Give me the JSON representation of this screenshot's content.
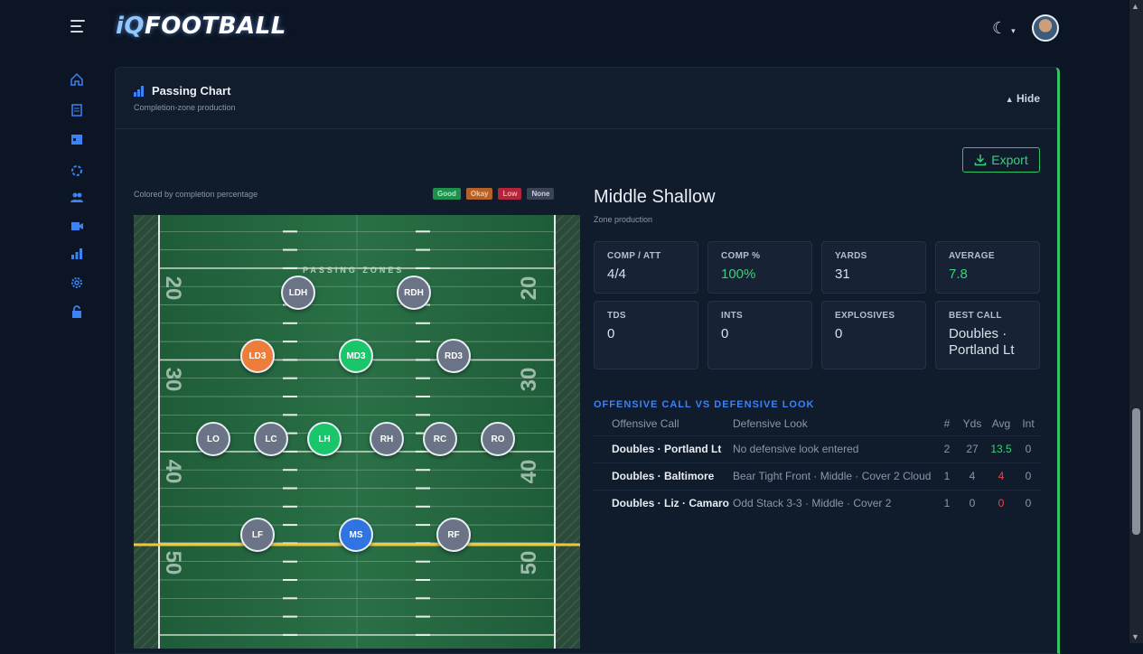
{
  "app": {
    "logo_prefix": "iQ",
    "logo_suffix": "FOOTBALL"
  },
  "nav": [
    "home-icon",
    "report-icon",
    "calendar-icon",
    "plays-icon",
    "users-icon",
    "film-icon",
    "analytics-icon",
    "settings-icon",
    "lock-icon"
  ],
  "panel": {
    "title": "Passing Chart",
    "subtitle": "Completion-zone production",
    "hide_label": "Hide",
    "export_label": "Export",
    "field_note": "Colored by completion percentage",
    "legend": [
      {
        "label": "Good",
        "color": "#1f8f4e"
      },
      {
        "label": "Okay",
        "color": "#b4622a"
      },
      {
        "label": "Low",
        "color": "#b3263a"
      },
      {
        "label": "None",
        "color": "#3a4456"
      }
    ],
    "field_label": "PASSING ZONES",
    "yard_numbers": [
      "20",
      "30",
      "40",
      "50"
    ]
  },
  "zones": [
    {
      "label": "LDH",
      "status": "none"
    },
    {
      "label": "RDH",
      "status": "none"
    },
    {
      "label": "LD3",
      "status": "okay"
    },
    {
      "label": "MD3",
      "status": "good"
    },
    {
      "label": "RD3",
      "status": "none"
    },
    {
      "label": "LO",
      "status": "none"
    },
    {
      "label": "LC",
      "status": "none"
    },
    {
      "label": "LH",
      "status": "good"
    },
    {
      "label": "RH",
      "status": "none"
    },
    {
      "label": "RC",
      "status": "none"
    },
    {
      "label": "RO",
      "status": "none"
    },
    {
      "label": "LF",
      "status": "none"
    },
    {
      "label": "MS",
      "status": "selected"
    },
    {
      "label": "RF",
      "status": "none"
    }
  ],
  "zone_colors": {
    "none": "#6b7486",
    "okay": "#ef7d3a",
    "good": "#19c76a",
    "selected": "#2f74e0"
  },
  "detail": {
    "title": "Middle Shallow",
    "subtitle": "Zone production",
    "stats": [
      {
        "label": "COMP / ATT",
        "value": "4/4"
      },
      {
        "label": "COMP %",
        "value": "100%",
        "highlight": true
      },
      {
        "label": "YARDS",
        "value": "31"
      },
      {
        "label": "AVERAGE",
        "value": "7.8",
        "highlight": true
      },
      {
        "label": "TDS",
        "value": "0"
      },
      {
        "label": "INTS",
        "value": "0"
      },
      {
        "label": "EXPLOSIVES",
        "value": "0"
      },
      {
        "label": "BEST CALL",
        "value": "Doubles · Portland Lt"
      }
    ],
    "section_title": "OFFENSIVE CALL VS DEFENSIVE LOOK",
    "table_headers": [
      "Offensive Call",
      "Defensive Look",
      "#",
      "Yds",
      "Avg",
      "Int"
    ],
    "rows": [
      {
        "call": "Doubles · Portland Lt",
        "look": "No defensive look entered",
        "n": "2",
        "yds": "27",
        "avg": "13.5",
        "avg_tone": "good",
        "int": "0"
      },
      {
        "call": "Doubles · Baltimore",
        "look": "Bear Tight Front · Middle · Cover 2 Cloud",
        "n": "1",
        "yds": "4",
        "avg": "4",
        "avg_tone": "low",
        "int": "0"
      },
      {
        "call": "Doubles · Liz · Camaro",
        "look": "Odd Stack 3-3 · Middle · Cover 2",
        "n": "1",
        "yds": "0",
        "avg": "0",
        "avg_tone": "low",
        "int": "0"
      }
    ]
  }
}
